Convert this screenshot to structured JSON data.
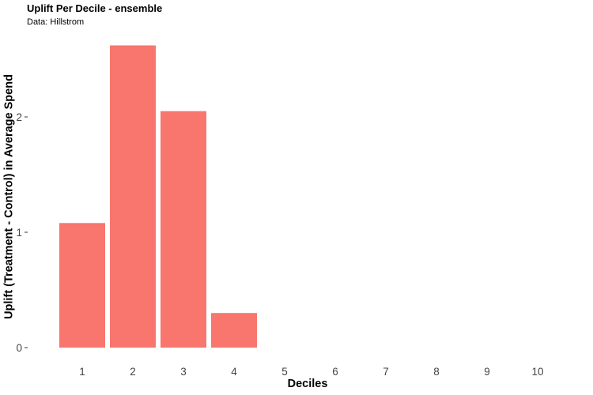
{
  "chart_data": {
    "type": "bar",
    "title": "Uplift Per Decile - ensemble",
    "subtitle": "Data: Hillstrom",
    "xlabel": "Deciles",
    "ylabel": "Uplift (Treatment - Control) in Average Spend",
    "categories": [
      "1",
      "2",
      "3",
      "4",
      "5",
      "6",
      "7",
      "8",
      "9",
      "10"
    ],
    "values": [
      1.08,
      2.62,
      2.05,
      0.3,
      0,
      0,
      0,
      0,
      0,
      0
    ],
    "yticks": [
      0,
      1,
      2
    ],
    "ylim": [
      0,
      2.75
    ],
    "grid": false,
    "bar_color": "#F8766D"
  }
}
